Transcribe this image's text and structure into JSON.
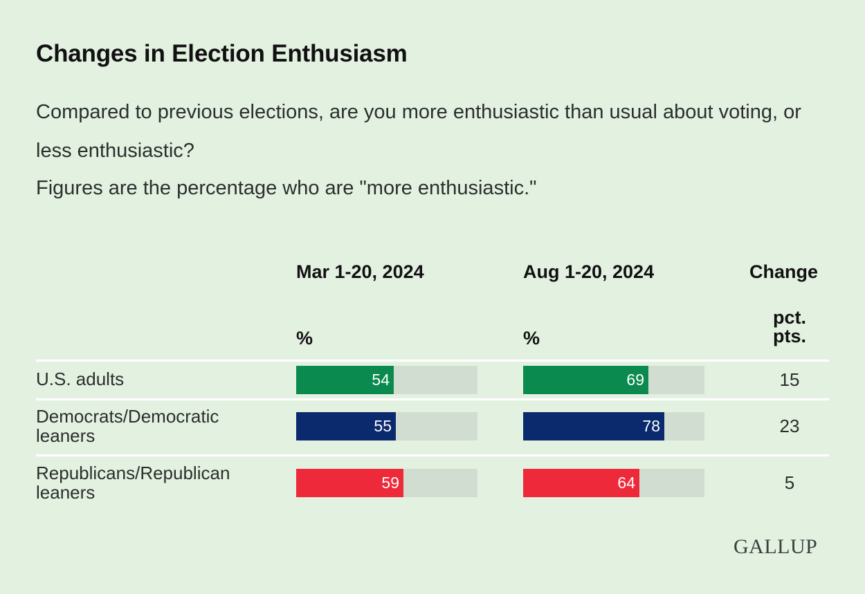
{
  "chart_data": {
    "type": "bar",
    "title": "Changes in Election Enthusiasm",
    "subtitle": "Compared to previous elections, are you more enthusiastic than usual about voting, or less enthusiastic?",
    "note": "Figures are the percentage who are \"more enthusiastic.\"",
    "columns": [
      {
        "header": "Mar 1-20, 2024",
        "unit": "%"
      },
      {
        "header": "Aug 1-20, 2024",
        "unit": "%"
      }
    ],
    "change_header": "Change",
    "change_unit_line1": "pct.",
    "change_unit_line2": "pts.",
    "xlim": [
      0,
      100
    ],
    "rows": [
      {
        "label": "U.S. adults",
        "color": "#0b8a4f",
        "values": [
          54,
          69
        ],
        "change": "15"
      },
      {
        "label": "Democrats/Democratic leaners",
        "color": "#0b2a6e",
        "values": [
          55,
          78
        ],
        "change": "23"
      },
      {
        "label": "Republicans/Republican leaners",
        "color": "#ee2a3a",
        "values": [
          59,
          64
        ],
        "change": "5"
      }
    ]
  },
  "logo": "GALLUP"
}
